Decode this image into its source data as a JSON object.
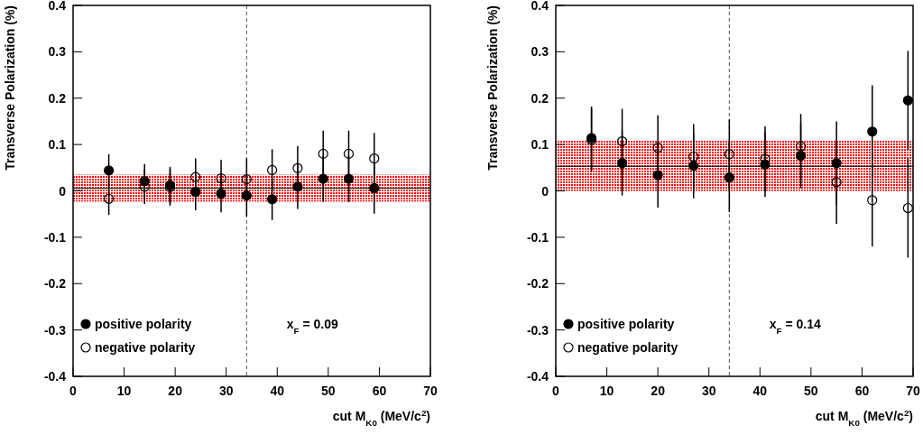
{
  "chart_data": [
    {
      "type": "scatter",
      "xlabel": "cut M$_{K0}$ (MeV/c$^{2}$)",
      "ylabel": "Transverse Polarization (%)",
      "annotations": [
        "x$_{F}$ = 0.09"
      ],
      "xlim": [
        0,
        70
      ],
      "ylim": [
        -0.4,
        0.4
      ],
      "xticks": [
        0,
        10,
        20,
        30,
        40,
        50,
        60,
        70
      ],
      "yticks": [
        -0.4,
        -0.3,
        -0.2,
        -0.1,
        0,
        0.1,
        0.2,
        0.3,
        0.4
      ],
      "legend": "bottom left",
      "grid": false,
      "bands": [
        {
          "axis": "y",
          "from": -0.023,
          "to": 0.035,
          "color": "#ff0000"
        }
      ],
      "ref_lines": [
        {
          "axis": "y",
          "value": 0.006,
          "color": "#000000",
          "line_style": "solid"
        },
        {
          "axis": "x",
          "value": 34,
          "color": "#555555",
          "line_style": "dashed"
        }
      ],
      "series": [
        {
          "name": "positive polarity",
          "color": "#000000",
          "marker": "circle",
          "x": [
            7,
            14,
            19,
            24,
            29,
            34,
            39,
            44,
            49,
            54,
            59
          ],
          "values": [
            0.044,
            0.021,
            0.012,
            -0.002,
            -0.006,
            -0.01,
            -0.018,
            0.009,
            0.026,
            0.026,
            0.006
          ],
          "errors": [
            0.035,
            0.037,
            0.04,
            0.04,
            0.04,
            0.045,
            0.045,
            0.048,
            0.05,
            0.05,
            0.055
          ]
        },
        {
          "name": "negative polarity",
          "color": "#000000",
          "marker": "open circle",
          "x": [
            7,
            14,
            19,
            24,
            29,
            34,
            39,
            44,
            49,
            54,
            59
          ],
          "values": [
            -0.017,
            0.009,
            0.008,
            0.03,
            0.027,
            0.025,
            0.045,
            0.049,
            0.08,
            0.08,
            0.07
          ],
          "errors": [
            0.035,
            0.037,
            0.04,
            0.04,
            0.04,
            0.045,
            0.045,
            0.048,
            0.05,
            0.05,
            0.055
          ]
        }
      ]
    },
    {
      "type": "scatter",
      "xlabel": "cut M$_{K0}$ (MeV/c$^{2}$)",
      "ylabel": "Transverse Polarization (%)",
      "annotations": [
        "x$_{F}$ = 0.14"
      ],
      "xlim": [
        0,
        70
      ],
      "ylim": [
        -0.4,
        0.4
      ],
      "xticks": [
        0,
        10,
        20,
        30,
        40,
        50,
        60,
        70
      ],
      "yticks": [
        -0.4,
        -0.3,
        -0.2,
        -0.1,
        0,
        0.1,
        0.2,
        0.3,
        0.4
      ],
      "legend": "bottom left",
      "grid": false,
      "bands": [
        {
          "axis": "y",
          "from": 0,
          "to": 0.108,
          "color": "#ff0000"
        }
      ],
      "ref_lines": [
        {
          "axis": "y",
          "value": 0.053,
          "color": "#000000",
          "line_style": "solid"
        },
        {
          "axis": "x",
          "value": 34,
          "color": "#555555",
          "line_style": "dashed"
        }
      ],
      "series": [
        {
          "name": "positive polarity",
          "color": "#000000",
          "marker": "circle",
          "x": [
            7,
            13,
            20,
            27,
            34,
            41,
            48,
            55,
            62,
            69
          ],
          "values": [
            0.114,
            0.06,
            0.034,
            0.054,
            0.029,
            0.057,
            0.076,
            0.06,
            0.128,
            0.195
          ],
          "errors": [
            0.068,
            0.07,
            0.07,
            0.07,
            0.075,
            0.07,
            0.07,
            0.09,
            0.1,
            0.107
          ]
        },
        {
          "name": "negative polarity",
          "color": "#000000",
          "marker": "open circle",
          "x": [
            7,
            13,
            20,
            27,
            34,
            41,
            48,
            55,
            62,
            69
          ],
          "values": [
            0.11,
            0.107,
            0.093,
            0.074,
            0.079,
            0.069,
            0.096,
            0.019,
            -0.02,
            -0.037
          ],
          "errors": [
            0.068,
            0.07,
            0.07,
            0.07,
            0.075,
            0.07,
            0.07,
            0.09,
            0.1,
            0.107
          ]
        }
      ]
    }
  ]
}
